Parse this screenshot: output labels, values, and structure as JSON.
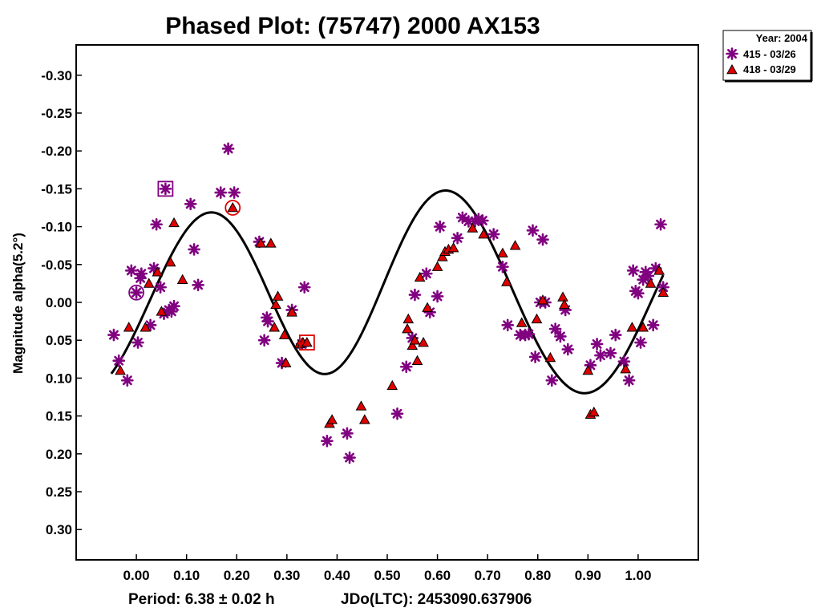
{
  "chart_data": {
    "type": "scatter",
    "title": "Phased Plot: (75747) 2000 AX153",
    "ylabel": "Magnitude alpha(5.2°)",
    "footer": {
      "period": "Period: 6.38 ± 0.02 h",
      "epoch": "JDo(LTC): 2453090.637906"
    },
    "xlim": [
      -0.12,
      1.12
    ],
    "ylim": [
      0.34,
      -0.34
    ],
    "y_inverted": true,
    "x_ticks": [
      0.0,
      0.1,
      0.2,
      0.3,
      0.4,
      0.5,
      0.6,
      0.7,
      0.8,
      0.9,
      1.0
    ],
    "x_tick_labels": [
      "0.00",
      "0.10",
      "0.20",
      "0.30",
      "0.40",
      "0.50",
      "0.60",
      "0.70",
      "0.80",
      "0.90",
      "1.00"
    ],
    "y_ticks": [
      -0.3,
      -0.25,
      -0.2,
      -0.15,
      -0.1,
      -0.05,
      0.0,
      0.05,
      0.1,
      0.15,
      0.2,
      0.25,
      0.3
    ],
    "y_tick_labels": [
      "-0.30",
      "-0.25",
      "-0.20",
      "-0.15",
      "-0.10",
      "-0.05",
      "0.00",
      "0.05",
      "0.10",
      "0.15",
      "0.20",
      "0.25",
      "0.30"
    ],
    "grid": false,
    "legend": {
      "position": "top-right",
      "header": "Year: 2004",
      "entries": [
        "415 - 03/26",
        "418 - 03/29"
      ]
    },
    "series": [
      {
        "name": "415 - 03/26",
        "marker": "asterisk",
        "color": "#800080",
        "points": [
          [
            -0.045,
            0.043
          ],
          [
            -0.035,
            0.077
          ],
          [
            -0.018,
            0.103
          ],
          [
            -0.01,
            -0.042
          ],
          [
            0.0,
            -0.013
          ],
          [
            0.003,
            0.053
          ],
          [
            0.008,
            -0.032
          ],
          [
            0.01,
            -0.038
          ],
          [
            0.028,
            0.03
          ],
          [
            0.035,
            -0.045
          ],
          [
            0.04,
            -0.103
          ],
          [
            0.048,
            -0.02
          ],
          [
            0.055,
            0.015
          ],
          [
            0.058,
            -0.15
          ],
          [
            0.065,
            0.01
          ],
          [
            0.07,
            0.012
          ],
          [
            0.075,
            0.005
          ],
          [
            0.108,
            -0.13
          ],
          [
            0.115,
            -0.07
          ],
          [
            0.123,
            -0.023
          ],
          [
            0.168,
            -0.145
          ],
          [
            0.183,
            -0.203
          ],
          [
            0.195,
            -0.145
          ],
          [
            0.245,
            -0.08
          ],
          [
            0.255,
            0.05
          ],
          [
            0.26,
            0.02
          ],
          [
            0.262,
            0.025
          ],
          [
            0.29,
            0.08
          ],
          [
            0.31,
            0.01
          ],
          [
            0.33,
            0.055
          ],
          [
            0.335,
            -0.02
          ],
          [
            0.38,
            0.183
          ],
          [
            0.42,
            0.173
          ],
          [
            0.425,
            0.205
          ],
          [
            0.52,
            0.147
          ],
          [
            0.538,
            0.085
          ],
          [
            0.55,
            0.047
          ],
          [
            0.555,
            -0.01
          ],
          [
            0.578,
            -0.038
          ],
          [
            0.585,
            0.013
          ],
          [
            0.6,
            -0.008
          ],
          [
            0.605,
            -0.1
          ],
          [
            0.64,
            -0.085
          ],
          [
            0.65,
            -0.112
          ],
          [
            0.662,
            -0.107
          ],
          [
            0.675,
            -0.107
          ],
          [
            0.682,
            -0.11
          ],
          [
            0.69,
            -0.108
          ],
          [
            0.712,
            -0.09
          ],
          [
            0.73,
            -0.047
          ],
          [
            0.74,
            0.03
          ],
          [
            0.765,
            0.043
          ],
          [
            0.775,
            0.043
          ],
          [
            0.782,
            0.042
          ],
          [
            0.79,
            -0.095
          ],
          [
            0.795,
            0.072
          ],
          [
            0.805,
            0.0
          ],
          [
            0.81,
            -0.083
          ],
          [
            0.815,
            0.0
          ],
          [
            0.828,
            0.103
          ],
          [
            0.835,
            0.035
          ],
          [
            0.845,
            0.045
          ],
          [
            0.855,
            0.01
          ],
          [
            0.86,
            0.062
          ],
          [
            0.905,
            0.083
          ],
          [
            0.918,
            0.055
          ],
          [
            0.925,
            0.07
          ],
          [
            0.945,
            0.067
          ],
          [
            0.955,
            0.043
          ],
          [
            0.972,
            0.078
          ],
          [
            0.982,
            0.103
          ],
          [
            0.99,
            -0.042
          ],
          [
            0.995,
            -0.015
          ],
          [
            1.0,
            -0.012
          ],
          [
            1.005,
            0.053
          ],
          [
            1.01,
            -0.03
          ],
          [
            1.015,
            -0.04
          ],
          [
            1.02,
            -0.035
          ],
          [
            1.03,
            0.03
          ],
          [
            1.035,
            -0.045
          ],
          [
            1.045,
            -0.103
          ],
          [
            1.05,
            -0.02
          ]
        ]
      },
      {
        "name": "418 - 03/29",
        "marker": "triangle",
        "color": "#e00000",
        "points": [
          [
            -0.015,
            0.033
          ],
          [
            -0.032,
            0.09
          ],
          [
            0.018,
            0.033
          ],
          [
            0.025,
            -0.025
          ],
          [
            0.042,
            -0.04
          ],
          [
            0.05,
            0.012
          ],
          [
            0.068,
            -0.053
          ],
          [
            0.075,
            -0.105
          ],
          [
            0.092,
            -0.03
          ],
          [
            0.192,
            -0.125
          ],
          [
            0.248,
            -0.078
          ],
          [
            0.268,
            -0.078
          ],
          [
            0.275,
            0.033
          ],
          [
            0.278,
            0.003
          ],
          [
            0.282,
            -0.008
          ],
          [
            0.295,
            0.043
          ],
          [
            0.298,
            0.08
          ],
          [
            0.31,
            0.013
          ],
          [
            0.325,
            0.055
          ],
          [
            0.332,
            0.053
          ],
          [
            0.34,
            0.053
          ],
          [
            0.385,
            0.16
          ],
          [
            0.39,
            0.155
          ],
          [
            0.448,
            0.137
          ],
          [
            0.455,
            0.155
          ],
          [
            0.51,
            0.11
          ],
          [
            0.54,
            0.035
          ],
          [
            0.542,
            0.022
          ],
          [
            0.55,
            0.057
          ],
          [
            0.555,
            0.05
          ],
          [
            0.56,
            0.077
          ],
          [
            0.565,
            -0.033
          ],
          [
            0.572,
            0.053
          ],
          [
            0.58,
            0.007
          ],
          [
            0.6,
            -0.047
          ],
          [
            0.61,
            -0.06
          ],
          [
            0.615,
            -0.067
          ],
          [
            0.622,
            -0.07
          ],
          [
            0.632,
            -0.072
          ],
          [
            0.67,
            -0.098
          ],
          [
            0.692,
            -0.09
          ],
          [
            0.73,
            -0.065
          ],
          [
            0.738,
            -0.027
          ],
          [
            0.755,
            -0.075
          ],
          [
            0.768,
            0.027
          ],
          [
            0.798,
            0.022
          ],
          [
            0.81,
            -0.003
          ],
          [
            0.825,
            0.073
          ],
          [
            0.85,
            -0.007
          ],
          [
            0.853,
            0.003
          ],
          [
            0.9,
            0.09
          ],
          [
            0.905,
            0.148
          ],
          [
            0.912,
            0.145
          ],
          [
            0.975,
            0.088
          ],
          [
            0.988,
            0.033
          ],
          [
            1.01,
            0.033
          ],
          [
            1.025,
            -0.025
          ],
          [
            1.042,
            -0.042
          ],
          [
            1.05,
            -0.013
          ]
        ]
      }
    ],
    "fit_curve": {
      "mean": -0.012,
      "terms": [
        {
          "harmonic": 1,
          "cos": 0.028,
          "sin": -0.002
        },
        {
          "harmonic": 2,
          "cos": 0.012,
          "sin": -0.118
        },
        {
          "harmonic": 3,
          "cos": 0.008,
          "sin": 0.006
        }
      ],
      "x_range": [
        -0.05,
        1.05
      ],
      "color": "#000000"
    },
    "highlighted_points": [
      {
        "series": "415 - 03/26",
        "shape": "square",
        "x": 0.058,
        "y": -0.15
      },
      {
        "series": "415 - 03/26",
        "shape": "circle",
        "x": 0.0,
        "y": -0.013
      },
      {
        "series": "418 - 03/29",
        "shape": "circle",
        "x": 0.192,
        "y": -0.125
      },
      {
        "series": "418 - 03/29",
        "shape": "square",
        "x": 0.34,
        "y": 0.053
      }
    ]
  }
}
